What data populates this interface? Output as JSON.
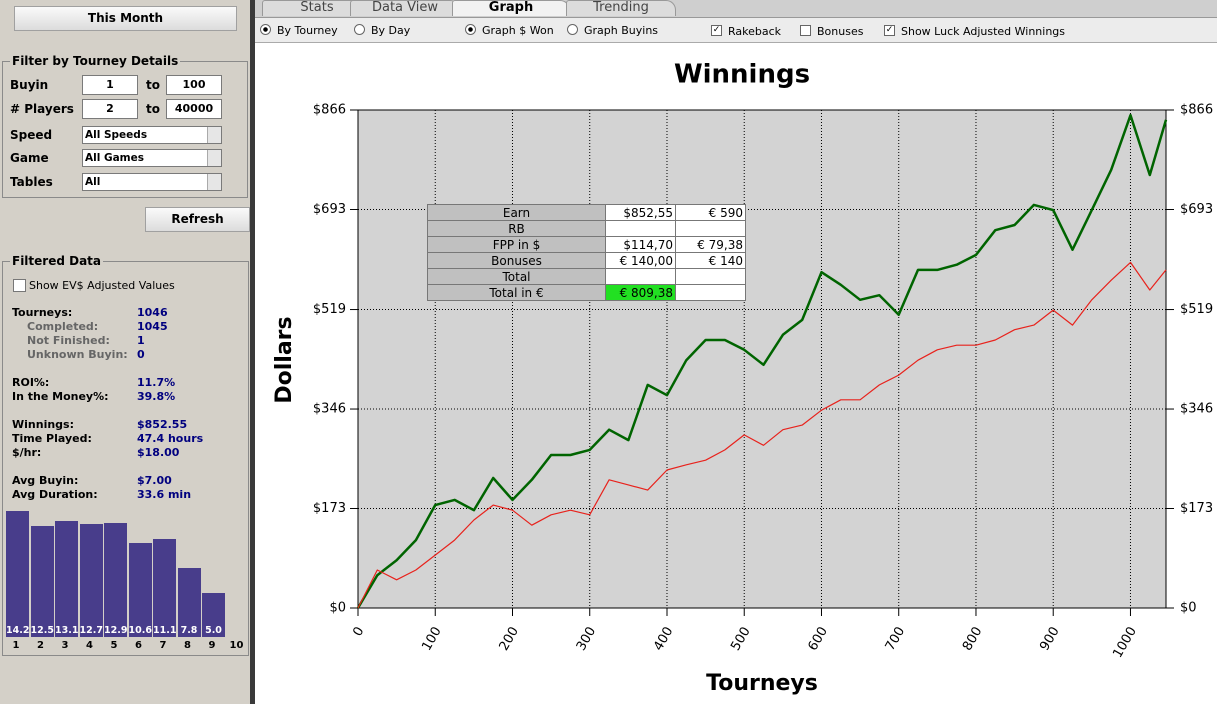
{
  "sidebar": {
    "period_button": "This Month",
    "filter": {
      "title": "Filter by Tourney Details",
      "rows": [
        {
          "label": "Buyin",
          "from": "1",
          "to_label": "to",
          "to": "100"
        },
        {
          "label": "# Players",
          "from": "2",
          "to_label": "to",
          "to": "40000"
        },
        {
          "label": "Speed",
          "select": "All Speeds"
        },
        {
          "label": "Game",
          "select": "All Games"
        },
        {
          "label": "Tables",
          "select": "All"
        }
      ]
    },
    "refresh_button": "Refresh",
    "filtered_data": {
      "title": "Filtered Data",
      "ev_checkbox": {
        "label": "Show EV$ Adjusted Values",
        "checked": false
      },
      "groups": [
        [
          {
            "label": "Tourneys:",
            "value": "1046",
            "details": [
              {
                "label": "Completed:",
                "value": "1045"
              },
              {
                "label": "Not Finished:",
                "value": "1"
              },
              {
                "label": "Unknown Buyin:",
                "value": "0"
              }
            ]
          }
        ],
        [
          {
            "label": "ROI%:",
            "value": "11.7%"
          },
          {
            "label": "In the Money%:",
            "value": "39.8%"
          }
        ],
        [
          {
            "label": "Winnings:",
            "value": "$852.55"
          },
          {
            "label": "Time Played:",
            "value": "47.4 hours"
          },
          {
            "label": "$/hr:",
            "value": "$18.00"
          }
        ],
        [
          {
            "label": "Avg Buyin:",
            "value": "$7.00"
          },
          {
            "label": "Avg Duration:",
            "value": "33.6 min"
          }
        ]
      ],
      "buyin_chart": {
        "type": "bar",
        "categories": [
          "1",
          "2",
          "3",
          "4",
          "5",
          "6",
          "7",
          "8",
          "9",
          "10"
        ],
        "values": [
          14.2,
          12.5,
          13.1,
          12.7,
          12.9,
          10.6,
          11.1,
          7.8,
          5.0,
          null
        ],
        "value_labels": [
          "14.2",
          "12.5",
          "13.1",
          "12.7",
          "12.9",
          "10.6",
          "11.1",
          "7.8",
          "5.0",
          null
        ],
        "color": "#483d8b"
      }
    }
  },
  "tabs": [
    {
      "label": "Stats",
      "active": false
    },
    {
      "label": "Data View",
      "active": false
    },
    {
      "label": "Graph",
      "active": true
    },
    {
      "label": "Trending",
      "active": false
    }
  ],
  "toolbar": [
    {
      "label": "By Tourney",
      "kind": "radio",
      "checked": true
    },
    {
      "label": "By Day",
      "kind": "radio",
      "checked": false
    },
    {
      "label": "Graph $ Won",
      "kind": "radio",
      "checked": true
    },
    {
      "label": "Graph Buyins",
      "kind": "radio",
      "checked": false
    },
    {
      "label": "Rakeback",
      "kind": "checkbox",
      "checked": true
    },
    {
      "label": "Bonuses",
      "kind": "checkbox",
      "checked": false
    },
    {
      "label": "Show Luck Adjusted Winnings",
      "kind": "checkbox",
      "checked": true
    }
  ],
  "chart_data": {
    "type": "line",
    "title": "Winnings",
    "y_label": "Dollars",
    "x_label": "Tourneys",
    "x": [
      0,
      25,
      50,
      75,
      100,
      125,
      150,
      175,
      200,
      225,
      250,
      275,
      300,
      325,
      350,
      375,
      400,
      425,
      450,
      475,
      500,
      525,
      550,
      575,
      600,
      625,
      650,
      675,
      700,
      725,
      750,
      775,
      800,
      825,
      850,
      875,
      900,
      925,
      950,
      975,
      1000,
      1025,
      1046
    ],
    "series": [
      {
        "color": "#006400",
        "values": [
          0,
          57,
          83,
          118,
          179,
          188,
          170,
          226,
          188,
          223,
          266,
          266,
          275,
          310,
          292,
          388,
          370,
          431,
          466,
          466,
          449,
          423,
          475,
          501,
          584,
          562,
          536,
          544,
          510,
          588,
          588,
          597,
          614,
          657,
          666,
          701,
          692,
          623,
          692,
          762,
          857,
          753,
          849
        ]
      },
      {
        "color": "#e8221c",
        "values": [
          0,
          66,
          49,
          66,
          92,
          118,
          153,
          179,
          170,
          144,
          162,
          170,
          162,
          223,
          214,
          205,
          240,
          249,
          257,
          275,
          301,
          283,
          310,
          318,
          344,
          362,
          362,
          388,
          405,
          431,
          449,
          457,
          457,
          466,
          484,
          492,
          518,
          492,
          536,
          570,
          601,
          553,
          588
        ]
      }
    ],
    "xlim": [
      0,
      1046
    ],
    "xticks": [
      0,
      100,
      200,
      300,
      400,
      500,
      600,
      700,
      800,
      900,
      1000
    ],
    "ylim": [
      0,
      866
    ],
    "yticks": [
      {
        "value": 0,
        "label": "$0"
      },
      {
        "value": 173,
        "label": "$173"
      },
      {
        "value": 346,
        "label": "$346"
      },
      {
        "value": 519,
        "label": "$519"
      },
      {
        "value": 693,
        "label": "$693"
      },
      {
        "value": 866,
        "label": "$866"
      }
    ],
    "grid": true,
    "plot_background": "#d3d3d3"
  },
  "summary_table": {
    "rows": [
      [
        "Earn",
        "$852,55",
        "€ 590"
      ],
      [
        "RB",
        null,
        null
      ],
      [
        "FPP in $",
        "$114,70",
        "€ 79,38"
      ],
      [
        "Bonuses",
        "€ 140,00",
        "€ 140"
      ],
      [
        "Total",
        null,
        null
      ],
      [
        "Total in €",
        "€ 809,38",
        null
      ]
    ],
    "highlight": {
      "row": 5,
      "col": 1,
      "color": "#22e022"
    }
  }
}
